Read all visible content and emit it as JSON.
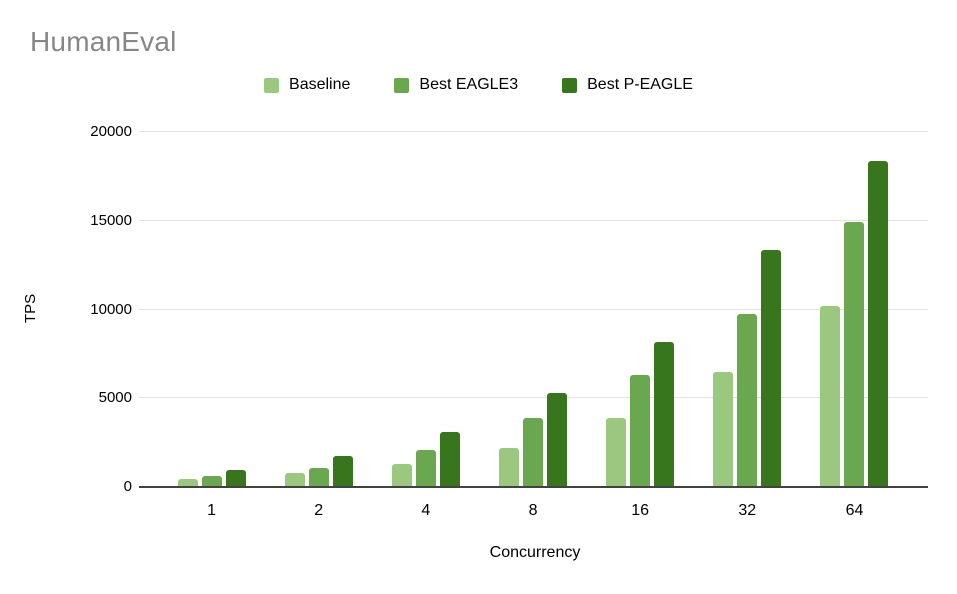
{
  "chart_data": {
    "type": "bar",
    "title": "HumanEval",
    "xlabel": "Concurrency",
    "ylabel": "TPS",
    "categories": [
      "1",
      "2",
      "4",
      "8",
      "16",
      "32",
      "64"
    ],
    "series": [
      {
        "name": "Baseline",
        "color": "#9bc87f",
        "values": [
          400,
          730,
          1240,
          2150,
          3830,
          6420,
          10130
        ]
      },
      {
        "name": "Best EAGLE3",
        "color": "#6aa84f",
        "values": [
          550,
          1010,
          2030,
          3830,
          6250,
          9690,
          14870
        ]
      },
      {
        "name": "Best P-EAGLE",
        "color": "#38761d",
        "values": [
          890,
          1690,
          3030,
          5230,
          8110,
          13290,
          18320
        ]
      }
    ],
    "ylim": [
      0,
      20000
    ],
    "yticks": [
      0,
      5000,
      10000,
      15000,
      20000
    ],
    "grid": true,
    "legend_position": "top"
  },
  "colors": {
    "title_text": "#878787",
    "gridline": "#e3e3e3",
    "axis_line": "#424242",
    "tick_text": "#000000",
    "background": "#ffffff"
  }
}
